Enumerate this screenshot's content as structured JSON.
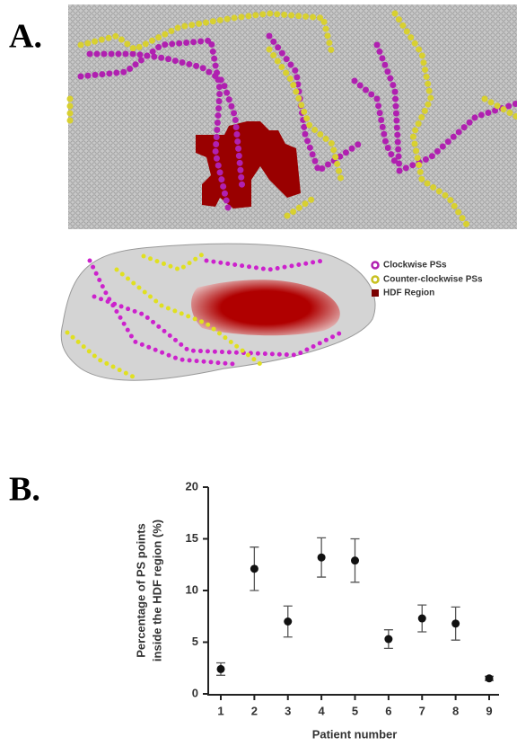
{
  "panel_labels": [
    "A.",
    "B."
  ],
  "legend": [
    "Clockwise PSs",
    "Counter-clockwise PSs",
    "HDF Region"
  ],
  "chart_data": {
    "type": "errorbar",
    "xlabel": "Patient number",
    "ylabel": [
      "Percentage of PS points",
      "inside the HDF region (%)"
    ],
    "categories": [
      "1",
      "2",
      "3",
      "4",
      "5",
      "6",
      "7",
      "8",
      "9"
    ],
    "values": [
      2.4,
      12.1,
      7.0,
      13.2,
      12.9,
      5.3,
      7.3,
      6.8,
      1.5
    ],
    "errors": [
      0.6,
      2.1,
      1.5,
      1.9,
      2.1,
      0.9,
      1.3,
      1.6,
      0.2
    ],
    "color": "#111111",
    "ylim": [
      0,
      20
    ],
    "yticks": [
      0,
      5,
      10,
      15,
      20
    ]
  }
}
